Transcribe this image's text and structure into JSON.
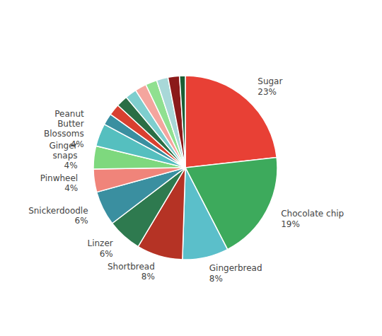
{
  "chart_data": {
    "type": "pie",
    "categories": [
      "Sugar",
      "Chocolate chip",
      "Gingerbread",
      "Shortbread",
      "Linzer",
      "Snickerdoodle",
      "Pinwheel",
      "Ginger\nsnaps",
      "Peanut\nButter\nBlossoms",
      null,
      null,
      null,
      null,
      null,
      null,
      null,
      null,
      null
    ],
    "values": [
      23,
      19,
      8,
      8,
      6,
      6,
      4,
      4,
      4,
      2,
      2,
      2,
      2,
      2,
      2,
      2,
      2,
      1
    ],
    "value_labels": [
      "23%",
      "19%",
      "8%",
      "8%",
      "6%",
      "6%",
      "4%",
      "4%",
      "4%",
      null,
      null,
      null,
      null,
      null,
      null,
      null,
      null,
      null
    ],
    "data_labels": true,
    "colors": [
      "#E84035",
      "#3DAA5C",
      "#5BBFCA",
      "#B53325",
      "#2E7A4F",
      "#3A8FA0",
      "#F0847A",
      "#7ED87E",
      "#55BFBF",
      "#3A8FA0",
      "#D94030",
      "#2A6E45",
      "#7ECECE",
      "#F4A59E",
      "#90E090",
      "#A8D8D8",
      "#8B1A1A",
      "#1B5E35"
    ]
  }
}
